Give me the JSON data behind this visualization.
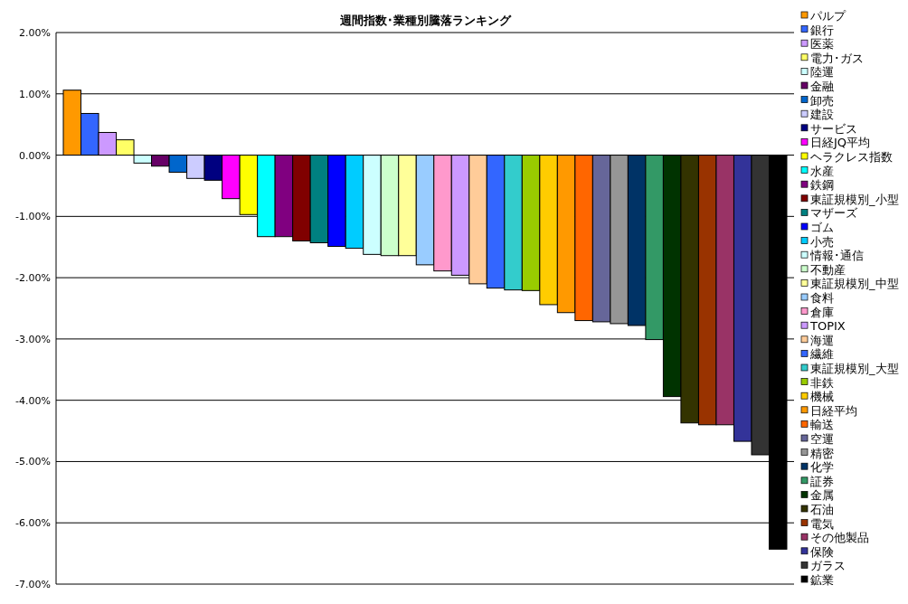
{
  "chart_data": {
    "type": "bar",
    "title": "週間指数･業種別騰落ランキング",
    "categories": [
      null
    ],
    "series": [
      {
        "name": "パルプ",
        "color": "#ff9900",
        "values": [
          1.06
        ]
      },
      {
        "name": "銀行",
        "color": "#3366ff",
        "values": [
          0.68
        ]
      },
      {
        "name": "医薬",
        "color": "#cc99ff",
        "values": [
          0.37
        ]
      },
      {
        "name": "電力･ガス",
        "color": "#ffff66",
        "values": [
          0.25
        ]
      },
      {
        "name": "陸運",
        "color": "#ccffff",
        "values": [
          -0.13
        ]
      },
      {
        "name": "金融",
        "color": "#660066",
        "values": [
          -0.18
        ]
      },
      {
        "name": "卸売",
        "color": "#0066cc",
        "values": [
          -0.28
        ]
      },
      {
        "name": "建設",
        "color": "#ccccff",
        "values": [
          -0.38
        ]
      },
      {
        "name": "サービス",
        "color": "#000080",
        "values": [
          -0.41
        ]
      },
      {
        "name": "日経JQ平均",
        "color": "#ff00ff",
        "values": [
          -0.71
        ]
      },
      {
        "name": "ヘラクレス指数",
        "color": "#ffff00",
        "values": [
          -0.97
        ]
      },
      {
        "name": "水産",
        "color": "#00ffff",
        "values": [
          -1.33
        ]
      },
      {
        "name": "鉄鋼",
        "color": "#800080",
        "values": [
          -1.33
        ]
      },
      {
        "name": "東証規模別_小型",
        "color": "#800000",
        "values": [
          -1.4
        ]
      },
      {
        "name": "マザーズ",
        "color": "#008080",
        "values": [
          -1.43
        ]
      },
      {
        "name": "ゴム",
        "color": "#0000ff",
        "values": [
          -1.49
        ]
      },
      {
        "name": "小売",
        "color": "#00ccff",
        "values": [
          -1.52
        ]
      },
      {
        "name": "情報･通信",
        "color": "#ccffff",
        "values": [
          -1.62
        ]
      },
      {
        "name": "不動産",
        "color": "#ccffcc",
        "values": [
          -1.64
        ]
      },
      {
        "name": "東証規模別_中型",
        "color": "#ffff99",
        "values": [
          -1.64
        ]
      },
      {
        "name": "食料",
        "color": "#99ccff",
        "values": [
          -1.79
        ]
      },
      {
        "name": "倉庫",
        "color": "#ff99cc",
        "values": [
          -1.89
        ]
      },
      {
        "name": "TOPIX",
        "color": "#cc99ff",
        "values": [
          -1.96
        ]
      },
      {
        "name": "海運",
        "color": "#ffcc99",
        "values": [
          -2.1
        ]
      },
      {
        "name": "繊維",
        "color": "#3366ff",
        "values": [
          -2.17
        ]
      },
      {
        "name": "東証規模別_大型",
        "color": "#33cccc",
        "values": [
          -2.2
        ]
      },
      {
        "name": "非鉄",
        "color": "#99cc00",
        "values": [
          -2.21
        ]
      },
      {
        "name": "機械",
        "color": "#ffcc00",
        "values": [
          -2.44
        ]
      },
      {
        "name": "日経平均",
        "color": "#ff9900",
        "values": [
          -2.57
        ]
      },
      {
        "name": "輸送",
        "color": "#ff6600",
        "values": [
          -2.7
        ]
      },
      {
        "name": "空運",
        "color": "#666699",
        "values": [
          -2.72
        ]
      },
      {
        "name": "精密",
        "color": "#969696",
        "values": [
          -2.75
        ]
      },
      {
        "name": "化学",
        "color": "#003366",
        "values": [
          -2.78
        ]
      },
      {
        "name": "証券",
        "color": "#339966",
        "values": [
          -3.01
        ]
      },
      {
        "name": "金属",
        "color": "#003300",
        "values": [
          -3.94
        ]
      },
      {
        "name": "石油",
        "color": "#333300",
        "values": [
          -4.37
        ]
      },
      {
        "name": "電気",
        "color": "#993300",
        "values": [
          -4.4
        ]
      },
      {
        "name": "その他製品",
        "color": "#993366",
        "values": [
          -4.4
        ]
      },
      {
        "name": "保険",
        "color": "#333399",
        "values": [
          -4.67
        ]
      },
      {
        "name": "ガラス",
        "color": "#333333",
        "values": [
          -4.89
        ]
      },
      {
        "name": "鉱業",
        "color": "#000000",
        "values": [
          -6.43
        ]
      }
    ],
    "ylim": [
      -7,
      2
    ],
    "yticks": [
      {
        "value": -7,
        "label": "-7.00%"
      },
      {
        "value": -6,
        "label": "-6.00%"
      },
      {
        "value": -5,
        "label": "-5.00%"
      },
      {
        "value": -4,
        "label": "-4.00%"
      },
      {
        "value": -3,
        "label": "-3.00%"
      },
      {
        "value": -2,
        "label": "-2.00%"
      },
      {
        "value": -1,
        "label": "-1.00%"
      },
      {
        "value": 0,
        "label": "0.00%"
      },
      {
        "value": 1,
        "label": "1.00%"
      },
      {
        "value": 2,
        "label": "2.00%"
      }
    ],
    "grid": "y",
    "legend": "right",
    "tick_labels": "y"
  }
}
